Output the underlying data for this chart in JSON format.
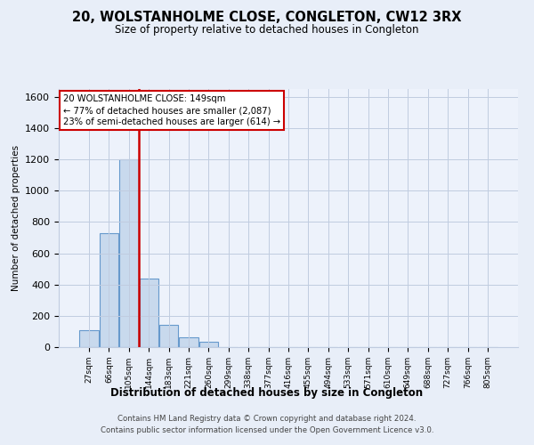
{
  "title": "20, WOLSTANHOLME CLOSE, CONGLETON, CW12 3RX",
  "subtitle": "Size of property relative to detached houses in Congleton",
  "xlabel": "Distribution of detached houses by size in Congleton",
  "ylabel": "Number of detached properties",
  "bar_labels": [
    "27sqm",
    "66sqm",
    "105sqm",
    "144sqm",
    "183sqm",
    "221sqm",
    "260sqm",
    "299sqm",
    "338sqm",
    "377sqm",
    "416sqm",
    "455sqm",
    "494sqm",
    "533sqm",
    "571sqm",
    "610sqm",
    "649sqm",
    "688sqm",
    "727sqm",
    "766sqm",
    "805sqm"
  ],
  "bar_values": [
    110,
    730,
    1200,
    440,
    145,
    60,
    35,
    0,
    0,
    0,
    0,
    0,
    0,
    0,
    0,
    0,
    0,
    0,
    0,
    0,
    0
  ],
  "bar_color": "#c8d9ed",
  "bar_edge_color": "#6699cc",
  "ylim": [
    0,
    1650
  ],
  "yticks": [
    0,
    200,
    400,
    600,
    800,
    1000,
    1200,
    1400,
    1600
  ],
  "property_line_color": "#cc0000",
  "property_line_index": 2.5,
  "annotation_title": "20 WOLSTANHOLME CLOSE: 149sqm",
  "annotation_line1": "← 77% of detached houses are smaller (2,087)",
  "annotation_line2": "23% of semi-detached houses are larger (614) →",
  "footer_line1": "Contains HM Land Registry data © Crown copyright and database right 2024.",
  "footer_line2": "Contains public sector information licensed under the Open Government Licence v3.0.",
  "bg_color": "#e8eef8",
  "plot_bg_color": "#edf2fb",
  "grid_color": "#c0cce0"
}
